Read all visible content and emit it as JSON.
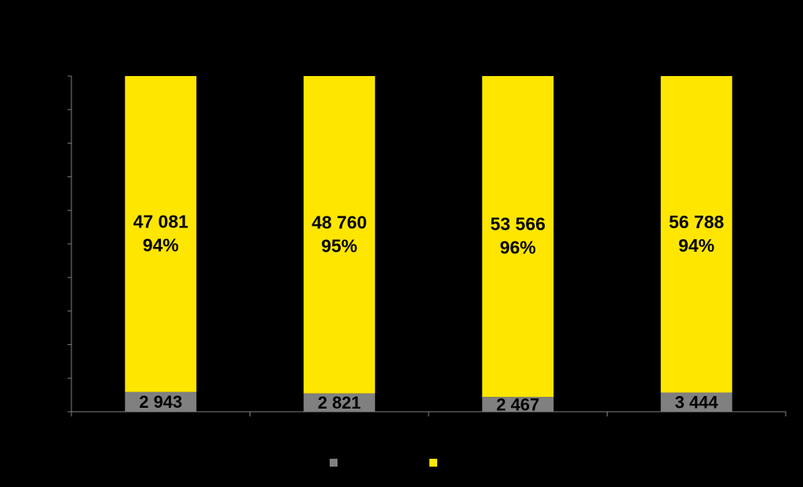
{
  "chart_data": {
    "type": "stacked_percent_bar",
    "categories": [
      null,
      null,
      null,
      null
    ],
    "ylim": [
      0,
      100
    ],
    "yticks": [
      0,
      10,
      20,
      30,
      40,
      50,
      60,
      70,
      80,
      90,
      100
    ],
    "series": [
      {
        "color": "#808080",
        "values": [
          2943,
          2821,
          2467,
          3444
        ],
        "value_labels": [
          "2 943",
          "2 821",
          "2 467",
          "3 444"
        ]
      },
      {
        "color": "#ffe600",
        "values": [
          47081,
          48760,
          53566,
          56788
        ],
        "value_labels": [
          "47 081",
          "48 760",
          "53 566",
          "56 788"
        ],
        "percent_values": [
          94,
          95,
          96,
          94
        ],
        "percent_labels": [
          "94%",
          "95%",
          "96%",
          "94%"
        ]
      }
    ],
    "legend": "bottom"
  }
}
